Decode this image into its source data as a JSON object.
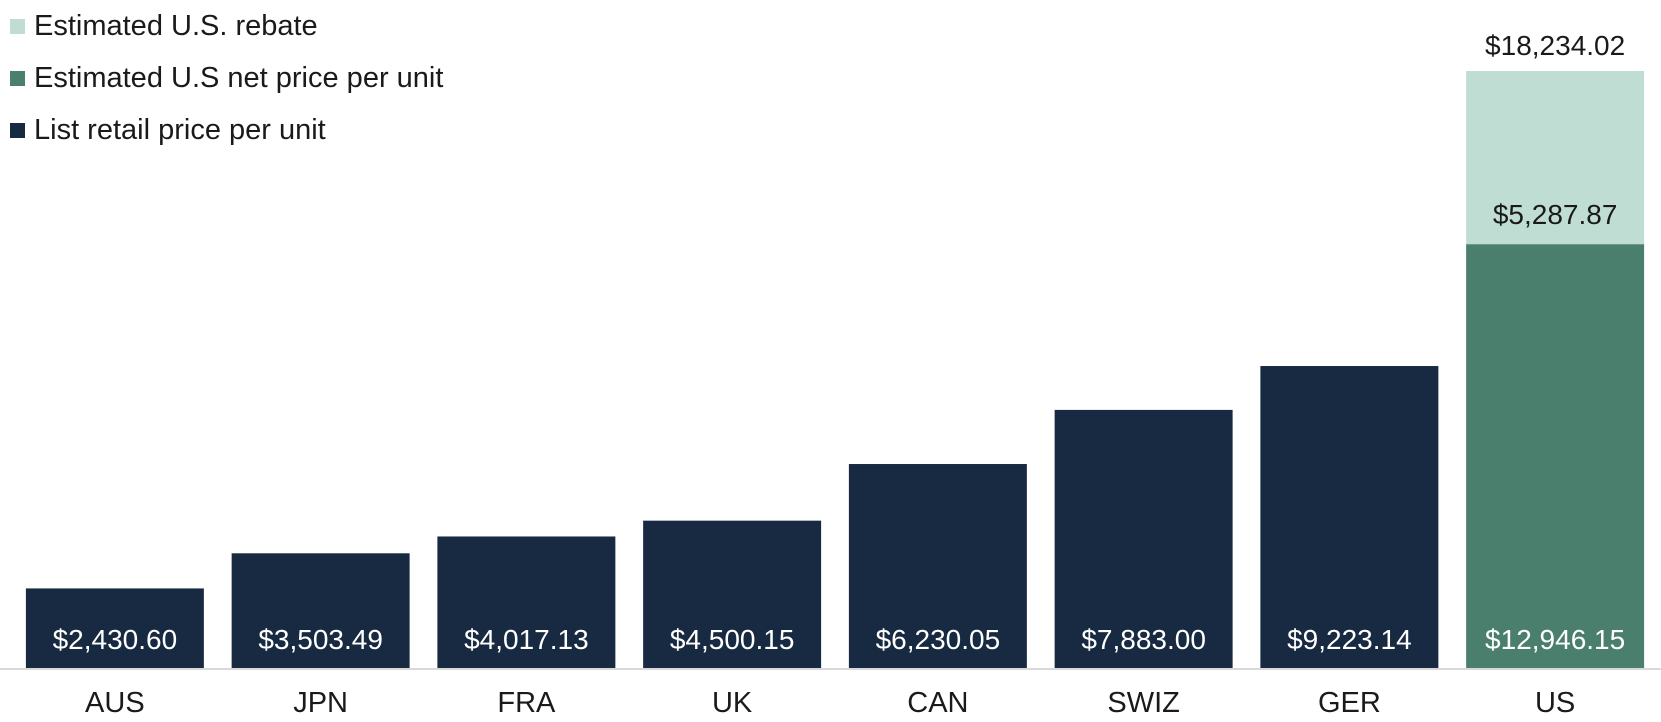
{
  "chart_data": {
    "type": "bar",
    "stacked": true,
    "categories": [
      "AUS",
      "JPN",
      "FRA",
      "UK",
      "CAN",
      "SWIZ",
      "GER",
      "US"
    ],
    "series": [
      {
        "name": "List retail price per unit",
        "color": "#172a41",
        "values": [
          2430.6,
          3503.49,
          4017.13,
          4500.15,
          6230.05,
          7883.0,
          9223.14,
          0
        ],
        "labels": [
          "$2,430.60",
          "$3,503.49",
          "$4,017.13",
          "$4,500.15",
          "$6,230.05",
          "$7,883.00",
          "$9,223.14",
          ""
        ]
      },
      {
        "name": "Estimated U.S net price per unit",
        "color": "#4a7f6e",
        "values": [
          0,
          0,
          0,
          0,
          0,
          0,
          0,
          12946.15
        ],
        "labels": [
          "",
          "",
          "",
          "",
          "",
          "",
          "",
          "$12,946.15"
        ]
      },
      {
        "name": "Estimated U.S. rebate",
        "color": "#c0ddd3",
        "values": [
          0,
          0,
          0,
          0,
          0,
          0,
          0,
          5287.87
        ],
        "labels": [
          "",
          "",
          "",
          "",
          "",
          "",
          "",
          "$5,287.87"
        ]
      }
    ],
    "totals": [
      {
        "category": "US",
        "value": 18234.02,
        "label": "$18,234.02"
      }
    ],
    "ylim": [
      0,
      20000
    ],
    "legend_position": "top-left",
    "grid": false,
    "title": "",
    "xlabel": "",
    "ylabel": ""
  }
}
